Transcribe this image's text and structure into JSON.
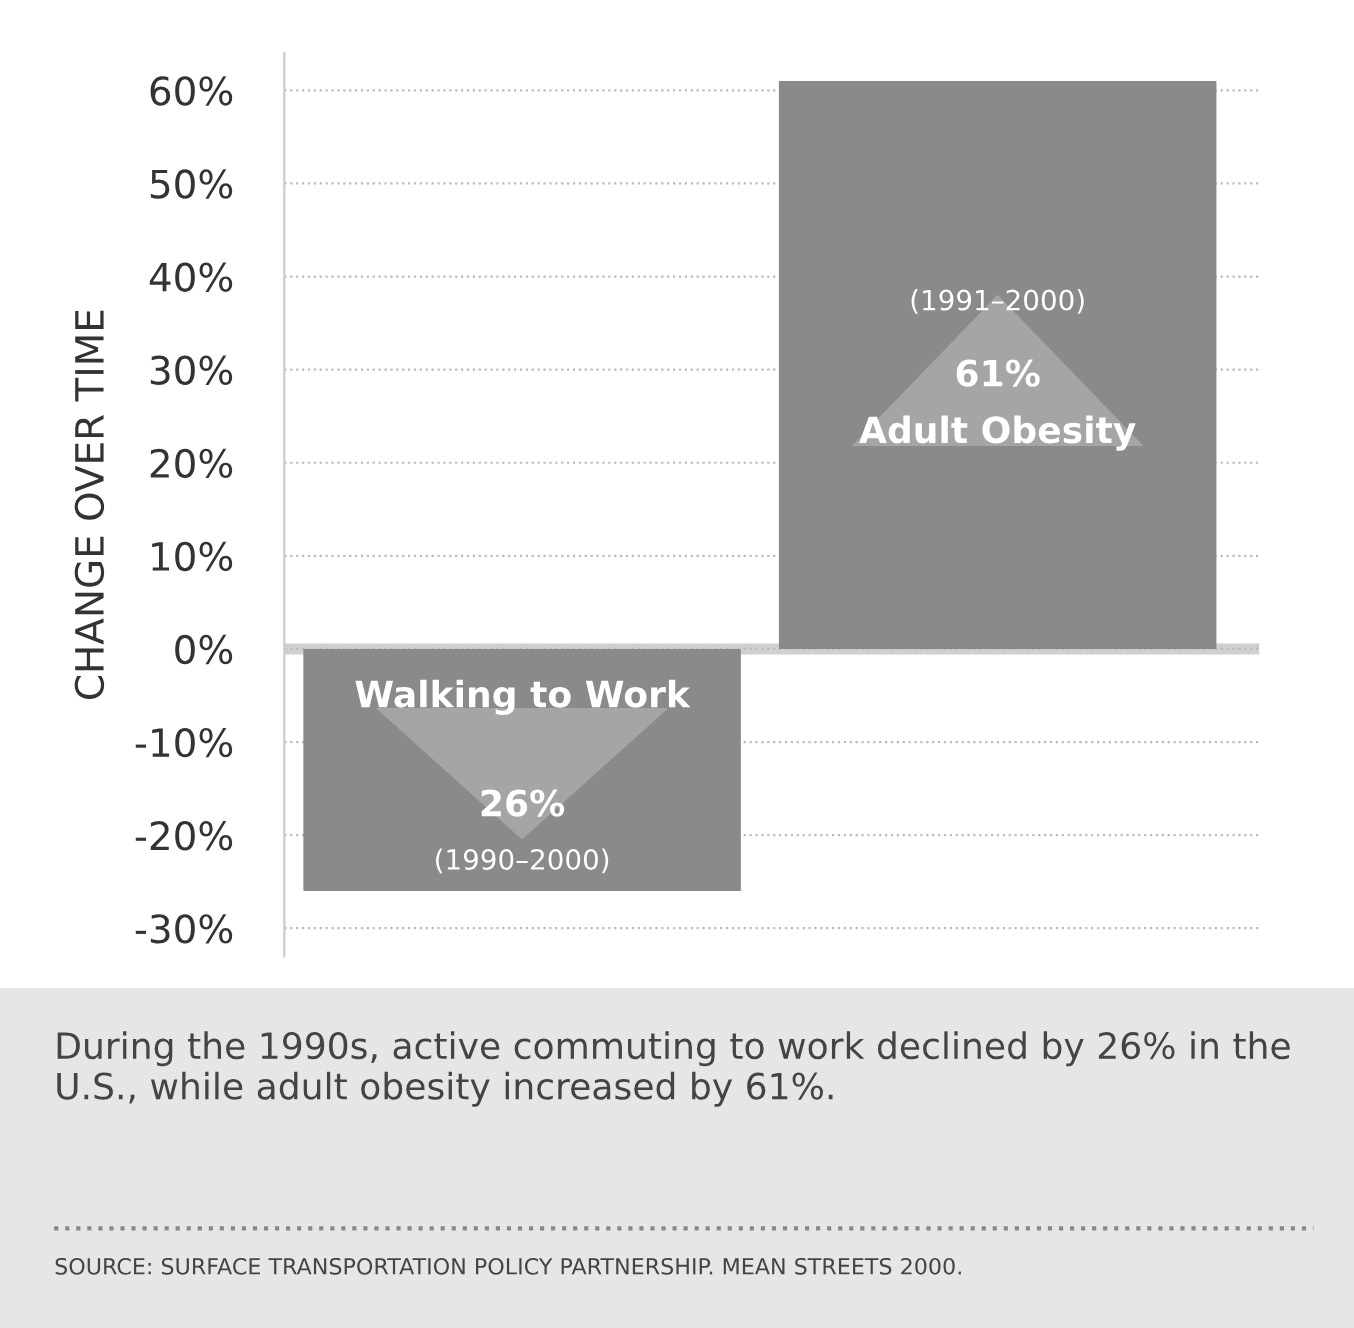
{
  "chart_data": {
    "type": "bar",
    "ylabel": "CHANGE OVER TIME",
    "categories": [
      "Walking to Work",
      "Adult Obesity"
    ],
    "values": [
      -26,
      61
    ],
    "color": "#8a8a8a",
    "ylim": [
      -33,
      64
    ],
    "yticks": [
      {
        "value": -30,
        "label": "-30%"
      },
      {
        "value": -20,
        "label": "-20%"
      },
      {
        "value": -10,
        "label": "-10%"
      },
      {
        "value": 0,
        "label": "0%"
      },
      {
        "value": 10,
        "label": "10%"
      },
      {
        "value": 20,
        "label": "20%"
      },
      {
        "value": 30,
        "label": "30%"
      },
      {
        "value": 40,
        "label": "40%"
      },
      {
        "value": 50,
        "label": "50%"
      },
      {
        "value": 60,
        "label": "60%"
      }
    ],
    "grid": "y",
    "ref_lines": [
      {
        "axis": "y",
        "value": 0,
        "color": "#d0d0d0"
      }
    ],
    "annotations": [
      "26%",
      "(1990–2000)",
      "61%",
      "(1991–2000)",
      "During the 1990s, active commuting to work declined by 26% in the U.S., while adult obesity increased by 61%.",
      "SOURCE: SURFACE TRANSPORTATION POLICY PARTNERSHIP. MEAN STREETS 2000."
    ]
  }
}
